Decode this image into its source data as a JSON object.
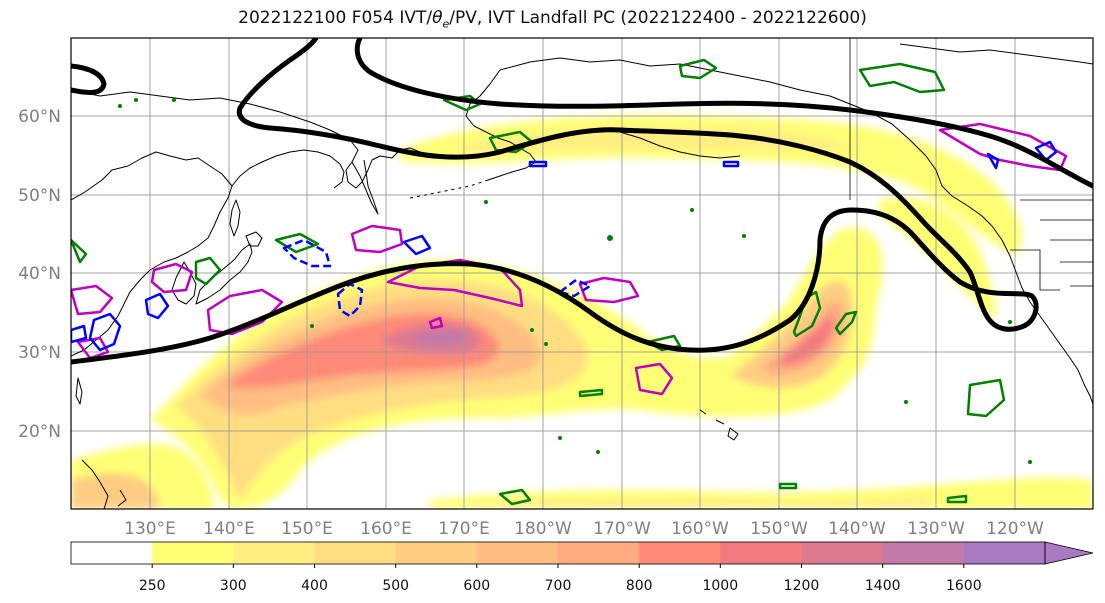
{
  "title": {
    "prefix": "2022122100 F054 IVT/",
    "theta": "θ",
    "theta_sub": "e",
    "suffix": "/PV, IVT Landfall PC (2022122400 - 2022122600)"
  },
  "map": {
    "projection": "PlateCarree",
    "lon_range": [
      120,
      250
    ],
    "lat_range": [
      10,
      70
    ],
    "grid": true,
    "land_color": "#ffffff",
    "ocean_color": "#ffffff",
    "coastline_color": "#000000",
    "lat_ticks": [
      {
        "value": 20,
        "label": "20°N"
      },
      {
        "value": 30,
        "label": "30°N"
      },
      {
        "value": 40,
        "label": "40°N"
      },
      {
        "value": 50,
        "label": "50°N"
      },
      {
        "value": 60,
        "label": "60°N"
      }
    ],
    "lon_ticks": [
      {
        "value": 130,
        "label": "130°E"
      },
      {
        "value": 140,
        "label": "140°E"
      },
      {
        "value": 150,
        "label": "150°E"
      },
      {
        "value": 160,
        "label": "160°E"
      },
      {
        "value": 170,
        "label": "170°E"
      },
      {
        "value": 180,
        "label": "180°W"
      },
      {
        "value": 190,
        "label": "170°W"
      },
      {
        "value": 200,
        "label": "160°W"
      },
      {
        "value": 210,
        "label": "150°W"
      },
      {
        "value": 220,
        "label": "140°W"
      },
      {
        "value": 230,
        "label": "130°W"
      },
      {
        "value": 240,
        "label": "120°W"
      }
    ],
    "tick_label_color": "#808080"
  },
  "colorbar": {
    "orientation": "horizontal",
    "extend": "max",
    "levels": [
      {
        "label": "",
        "color": "#ffffff"
      },
      {
        "label": "250",
        "color": "#ffff75"
      },
      {
        "label": "300",
        "color": "#ffef82"
      },
      {
        "label": "400",
        "color": "#ffde82"
      },
      {
        "label": "500",
        "color": "#ffcd82"
      },
      {
        "label": "600",
        "color": "#ffbd82"
      },
      {
        "label": "700",
        "color": "#ffab80"
      },
      {
        "label": "800",
        "color": "#ff8a78"
      },
      {
        "label": "1000",
        "color": "#f37a7f"
      },
      {
        "label": "1200",
        "color": "#de7a90"
      },
      {
        "label": "1400",
        "color": "#c27aa8"
      },
      {
        "label": "1600",
        "color": "#a97ac0"
      }
    ]
  },
  "overlays": {
    "landfall_pc_color": "#000000",
    "theta_e_color": "#008000",
    "pv_color": "#c000c0",
    "negative_color": "#0000ff"
  }
}
